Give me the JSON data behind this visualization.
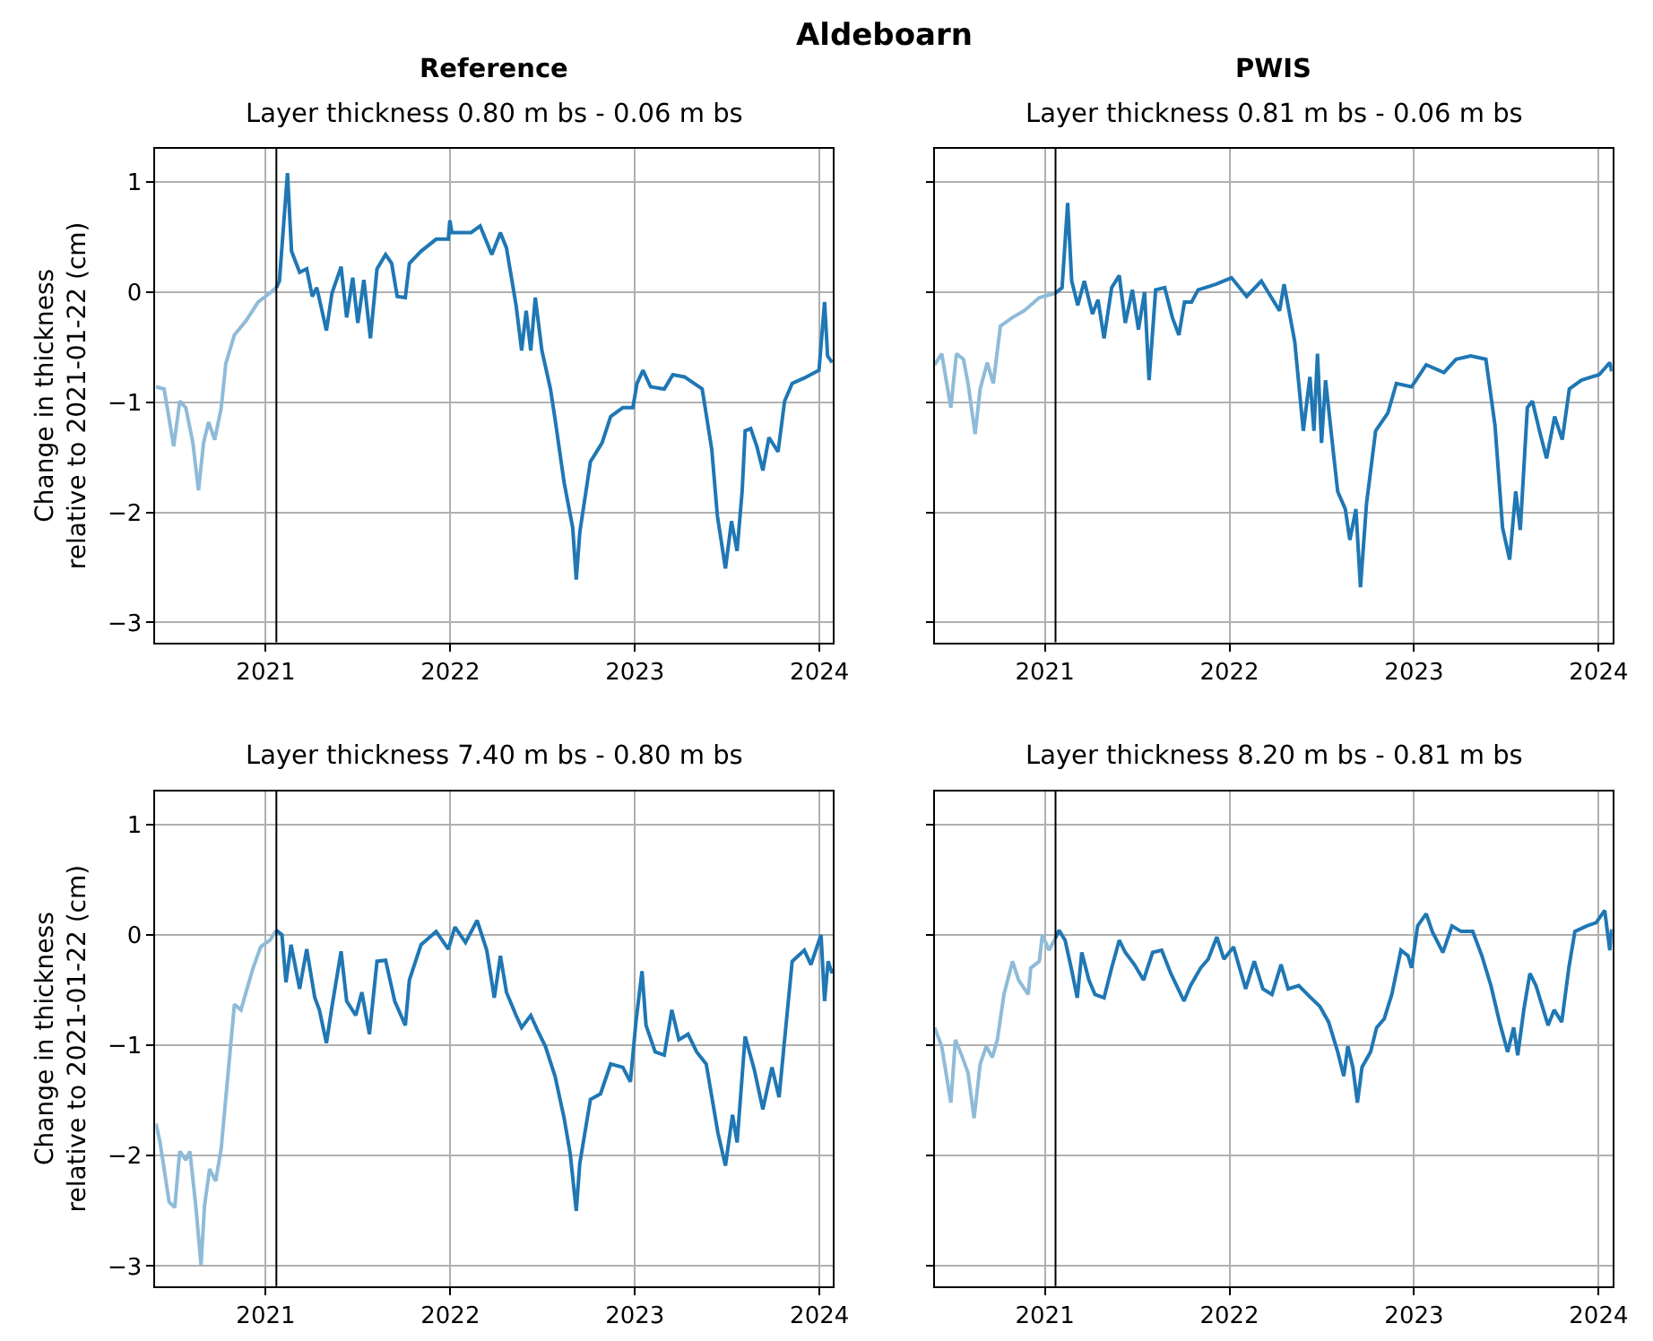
{
  "chart_data": [
    {
      "type": "line",
      "title": "Reference",
      "subtitle": "Layer thickness 0.80 m bs - 0.06 m bs",
      "ylabel": "Change in thickness\nrelative to 2021-01-22 (cm)",
      "annotations": [
        "Aldeboarn"
      ],
      "xlim": [
        "2020-05-28",
        "2024-01-28"
      ],
      "xticks": [
        {
          "value": "2021-01-01",
          "label": "2021"
        },
        {
          "value": "2022-01-01",
          "label": "2022"
        },
        {
          "value": "2023-01-01",
          "label": "2023"
        },
        {
          "value": "2024-01-01",
          "label": "2024"
        }
      ],
      "ylim": [
        -3.18,
        1.3
      ],
      "yticks": [
        -3,
        -2,
        -1,
        0,
        1
      ],
      "grid": true,
      "marker": "none",
      "line_style": "solid",
      "ref_lines": [
        {
          "axis": "x",
          "value": "2021-01-22",
          "color": "#000000"
        }
      ],
      "series": [
        {
          "color": "#8fbbd9",
          "x": [
            "2020-05-29",
            "2020-06-14",
            "2020-07-03",
            "2020-07-15",
            "2020-07-27",
            "2020-08-10",
            "2020-08-21",
            "2020-08-31",
            "2020-09-10",
            "2020-09-22",
            "2020-10-05",
            "2020-10-14",
            "2020-10-31",
            "2020-11-23",
            "2020-12-17",
            "2021-01-09",
            "2021-01-22"
          ],
          "values": [
            -0.86,
            -0.88,
            -1.4,
            -0.99,
            -1.05,
            -1.37,
            -1.8,
            -1.37,
            -1.18,
            -1.34,
            -1.05,
            -0.65,
            -0.39,
            -0.26,
            -0.09,
            -0.01,
            0.04
          ]
        },
        {
          "color": "#1f77b4",
          "x": [
            "2021-01-22",
            "2021-01-28",
            "2021-02-13",
            "2021-02-21",
            "2021-03-09",
            "2021-03-23",
            "2021-04-03",
            "2021-04-12",
            "2021-05-01",
            "2021-05-12",
            "2021-05-30",
            "2021-06-10",
            "2021-06-22",
            "2021-07-02",
            "2021-07-14",
            "2021-07-27",
            "2021-08-09",
            "2021-08-26",
            "2021-09-07",
            "2021-09-18",
            "2021-10-04",
            "2021-10-12",
            "2021-11-04",
            "2021-12-04",
            "2021-12-28",
            "2021-12-31",
            "2022-01-04",
            "2022-02-11",
            "2022-03-01",
            "2022-03-24",
            "2022-04-10",
            "2022-04-22",
            "2022-05-11",
            "2022-05-22",
            "2022-05-31",
            "2022-06-09",
            "2022-06-18",
            "2022-07-01",
            "2022-07-18",
            "2022-07-27",
            "2022-08-14",
            "2022-08-31",
            "2022-09-07",
            "2022-09-14",
            "2022-10-05",
            "2022-10-28",
            "2022-11-14",
            "2022-12-08",
            "2022-12-28",
            "2023-01-05",
            "2023-01-17",
            "2023-02-01",
            "2023-02-28",
            "2023-03-17",
            "2023-04-09",
            "2023-05-14",
            "2023-06-02",
            "2023-06-13",
            "2023-06-29",
            "2023-07-11",
            "2023-07-22",
            "2023-08-01",
            "2023-08-07",
            "2023-08-18",
            "2023-08-30",
            "2023-09-11",
            "2023-09-23",
            "2023-10-11",
            "2023-10-24",
            "2023-11-08",
            "2023-12-02",
            "2023-12-31",
            "2024-01-11",
            "2024-01-17",
            "2024-01-26"
          ],
          "values": [
            0.04,
            0.1,
            1.08,
            0.37,
            0.18,
            0.21,
            -0.04,
            0.04,
            -0.35,
            -0.01,
            0.23,
            -0.23,
            0.13,
            -0.28,
            0.11,
            -0.42,
            0.21,
            0.34,
            0.26,
            -0.04,
            -0.05,
            0.26,
            0.37,
            0.48,
            0.48,
            0.65,
            0.54,
            0.54,
            0.6,
            0.34,
            0.54,
            0.4,
            -0.12,
            -0.53,
            -0.17,
            -0.53,
            -0.05,
            -0.53,
            -0.88,
            -1.15,
            -1.73,
            -2.14,
            -2.61,
            -2.18,
            -1.54,
            -1.37,
            -1.13,
            -1.05,
            -1.05,
            -0.83,
            -0.71,
            -0.86,
            -0.88,
            -0.75,
            -0.77,
            -0.88,
            -1.43,
            -2.03,
            -2.51,
            -2.08,
            -2.35,
            -1.81,
            -1.26,
            -1.24,
            -1.4,
            -1.62,
            -1.32,
            -1.45,
            -0.99,
            -0.83,
            -0.78,
            -0.71,
            -0.09,
            -0.58,
            -0.64
          ]
        }
      ]
    },
    {
      "type": "line",
      "title": "PWIS",
      "subtitle": "Layer thickness 0.81 m bs - 0.06 m bs",
      "xlim": [
        "2020-05-28",
        "2024-01-28"
      ],
      "xticks": [
        {
          "value": "2021-01-01",
          "label": "2021"
        },
        {
          "value": "2022-01-01",
          "label": "2022"
        },
        {
          "value": "2023-01-01",
          "label": "2023"
        },
        {
          "value": "2024-01-01",
          "label": "2024"
        }
      ],
      "ylim": [
        -3.18,
        1.3
      ],
      "yticks": [
        -3,
        -2,
        -1,
        0,
        1
      ],
      "tick_labels": "x",
      "grid": true,
      "marker": "none",
      "line_style": "solid",
      "ref_lines": [
        {
          "axis": "x",
          "value": "2021-01-22",
          "color": "#000000"
        }
      ],
      "series": [
        {
          "color": "#8fbbd9",
          "x": [
            "2020-05-28",
            "2020-06-11",
            "2020-06-29",
            "2020-07-10",
            "2020-07-24",
            "2020-08-02",
            "2020-08-16",
            "2020-08-26",
            "2020-09-09",
            "2020-09-21",
            "2020-10-05",
            "2020-10-29",
            "2020-11-21",
            "2020-12-21",
            "2021-01-22"
          ],
          "values": [
            -0.66,
            -0.56,
            -1.05,
            -0.56,
            -0.61,
            -0.83,
            -1.29,
            -0.88,
            -0.64,
            -0.83,
            -0.31,
            -0.23,
            -0.17,
            -0.05,
            -0.01
          ]
        },
        {
          "color": "#1f77b4",
          "x": [
            "2021-01-22",
            "2021-02-04",
            "2021-02-15",
            "2021-02-23",
            "2021-03-07",
            "2021-03-20",
            "2021-04-05",
            "2021-04-16",
            "2021-04-28",
            "2021-05-13",
            "2021-05-28",
            "2021-06-09",
            "2021-06-23",
            "2021-07-05",
            "2021-07-17",
            "2021-07-26",
            "2021-08-08",
            "2021-08-26",
            "2021-09-10",
            "2021-09-23",
            "2021-10-04",
            "2021-10-18",
            "2021-10-31",
            "2021-12-05",
            "2022-01-05",
            "2022-02-04",
            "2022-03-05",
            "2022-04-10",
            "2022-04-19",
            "2022-05-10",
            "2022-05-27",
            "2022-06-09",
            "2022-06-17",
            "2022-06-24",
            "2022-07-02",
            "2022-07-10",
            "2022-07-26",
            "2022-08-03",
            "2022-08-18",
            "2022-08-27",
            "2022-09-08",
            "2022-09-17",
            "2022-09-29",
            "2022-10-17",
            "2022-11-10",
            "2022-11-27",
            "2022-12-27",
            "2023-01-25",
            "2023-03-01",
            "2023-03-25",
            "2023-04-23",
            "2023-05-23",
            "2023-06-10",
            "2023-06-25",
            "2023-07-09",
            "2023-07-21",
            "2023-07-30",
            "2023-08-13",
            "2023-08-23",
            "2023-09-06",
            "2023-09-20",
            "2023-10-06",
            "2023-10-21",
            "2023-11-04",
            "2023-11-28",
            "2024-01-02",
            "2024-01-23",
            "2024-01-27"
          ],
          "values": [
            -0.01,
            0.04,
            0.81,
            0.1,
            -0.12,
            0.1,
            -0.2,
            -0.07,
            -0.42,
            0.04,
            0.15,
            -0.28,
            0.02,
            -0.34,
            0.0,
            -0.8,
            0.02,
            0.04,
            -0.23,
            -0.39,
            -0.09,
            -0.09,
            0.02,
            0.07,
            0.13,
            -0.04,
            0.1,
            -0.17,
            0.07,
            -0.45,
            -1.26,
            -0.77,
            -1.26,
            -0.56,
            -1.37,
            -0.8,
            -1.48,
            -1.81,
            -1.97,
            -2.25,
            -1.97,
            -2.68,
            -1.92,
            -1.26,
            -1.1,
            -0.83,
            -0.86,
            -0.66,
            -0.73,
            -0.61,
            -0.58,
            -0.61,
            -1.21,
            -2.14,
            -2.43,
            -1.81,
            -2.16,
            -1.05,
            -0.99,
            -1.26,
            -1.51,
            -1.13,
            -1.34,
            -0.88,
            -0.8,
            -0.75,
            -0.64,
            -0.72
          ]
        }
      ]
    },
    {
      "type": "line",
      "subtitle": "Layer thickness 7.40 m bs - 0.80 m bs",
      "ylabel": "Change in thickness\nrelative to 2021-01-22 (cm)",
      "xlim": [
        "2020-05-28",
        "2024-01-28"
      ],
      "xticks": [
        {
          "value": "2021-01-01",
          "label": "2021"
        },
        {
          "value": "2022-01-01",
          "label": "2022"
        },
        {
          "value": "2023-01-01",
          "label": "2023"
        },
        {
          "value": "2024-01-01",
          "label": "2024"
        }
      ],
      "ylim": [
        -3.18,
        1.3
      ],
      "yticks": [
        -3,
        -2,
        -1,
        0,
        1
      ],
      "grid": true,
      "marker": "none",
      "line_style": "solid",
      "ref_lines": [
        {
          "axis": "x",
          "value": "2021-01-22",
          "color": "#000000"
        }
      ],
      "series": [
        {
          "color": "#8fbbd9",
          "x": [
            "2020-05-29",
            "2020-06-06",
            "2020-06-24",
            "2020-07-05",
            "2020-07-15",
            "2020-07-27",
            "2020-08-04",
            "2020-08-16",
            "2020-08-26",
            "2020-09-02",
            "2020-09-12",
            "2020-09-24",
            "2020-10-05",
            "2020-10-18",
            "2020-10-31",
            "2020-11-13",
            "2020-11-23",
            "2020-12-07",
            "2020-12-22",
            "2021-01-09",
            "2021-01-22"
          ],
          "values": [
            -1.71,
            -1.88,
            -2.42,
            -2.47,
            -1.96,
            -2.04,
            -1.96,
            -2.47,
            -2.99,
            -2.45,
            -2.12,
            -2.23,
            -1.93,
            -1.28,
            -0.63,
            -0.68,
            -0.52,
            -0.3,
            -0.11,
            -0.05,
            0.04
          ]
        },
        {
          "color": "#1f77b4",
          "x": [
            "2021-01-22",
            "2021-02-02",
            "2021-02-10",
            "2021-02-20",
            "2021-03-09",
            "2021-03-23",
            "2021-04-08",
            "2021-04-17",
            "2021-05-01",
            "2021-05-12",
            "2021-05-30",
            "2021-06-10",
            "2021-06-28",
            "2021-07-10",
            "2021-07-25",
            "2021-08-09",
            "2021-08-26",
            "2021-09-13",
            "2021-10-04",
            "2021-10-12",
            "2021-11-04",
            "2021-12-04",
            "2021-12-28",
            "2022-01-10",
            "2022-01-31",
            "2022-02-23",
            "2022-03-14",
            "2022-03-29",
            "2022-04-10",
            "2022-04-22",
            "2022-05-11",
            "2022-05-22",
            "2022-06-09",
            "2022-06-23",
            "2022-07-08",
            "2022-07-27",
            "2022-08-14",
            "2022-08-26",
            "2022-09-07",
            "2022-09-14",
            "2022-10-05",
            "2022-10-25",
            "2022-11-14",
            "2022-12-08",
            "2022-12-23",
            "2023-01-03",
            "2023-01-15",
            "2023-01-23",
            "2023-02-10",
            "2023-02-28",
            "2023-03-15",
            "2023-03-29",
            "2023-04-16",
            "2023-05-03",
            "2023-05-22",
            "2023-06-14",
            "2023-06-29",
            "2023-07-13",
            "2023-07-22",
            "2023-08-07",
            "2023-08-25",
            "2023-09-11",
            "2023-09-29",
            "2023-10-13",
            "2023-10-24",
            "2023-11-08",
            "2023-12-02",
            "2023-12-15",
            "2024-01-04",
            "2024-01-11",
            "2024-01-18",
            "2024-01-26"
          ],
          "values": [
            0.04,
            0.0,
            -0.43,
            -0.09,
            -0.49,
            -0.13,
            -0.57,
            -0.68,
            -0.98,
            -0.65,
            -0.15,
            -0.6,
            -0.73,
            -0.52,
            -0.9,
            -0.24,
            -0.23,
            -0.6,
            -0.82,
            -0.41,
            -0.09,
            0.03,
            -0.13,
            0.07,
            -0.07,
            0.13,
            -0.14,
            -0.57,
            -0.19,
            -0.52,
            -0.73,
            -0.84,
            -0.73,
            -0.87,
            -1.01,
            -1.28,
            -1.66,
            -1.98,
            -2.5,
            -2.07,
            -1.49,
            -1.44,
            -1.17,
            -1.2,
            -1.33,
            -0.79,
            -0.33,
            -0.82,
            -1.06,
            -1.09,
            -0.68,
            -0.95,
            -0.9,
            -1.06,
            -1.17,
            -1.79,
            -2.09,
            -1.63,
            -1.88,
            -0.92,
            -1.22,
            -1.58,
            -1.2,
            -1.47,
            -0.95,
            -0.24,
            -0.14,
            -0.27,
            0.0,
            -0.6,
            -0.24,
            -0.35
          ]
        }
      ]
    },
    {
      "type": "line",
      "subtitle": "Layer thickness 8.20 m bs - 0.81 m bs",
      "xlim": [
        "2020-05-28",
        "2024-01-28"
      ],
      "xticks": [
        {
          "value": "2021-01-01",
          "label": "2021"
        },
        {
          "value": "2022-01-01",
          "label": "2022"
        },
        {
          "value": "2023-01-01",
          "label": "2023"
        },
        {
          "value": "2024-01-01",
          "label": "2024"
        }
      ],
      "ylim": [
        -3.18,
        1.3
      ],
      "yticks": [
        -3,
        -2,
        -1,
        0,
        1
      ],
      "tick_labels": "x",
      "grid": true,
      "marker": "none",
      "line_style": "solid",
      "ref_lines": [
        {
          "axis": "x",
          "value": "2021-01-22",
          "color": "#000000"
        }
      ],
      "series": [
        {
          "color": "#8fbbd9",
          "x": [
            "2020-05-28",
            "2020-06-11",
            "2020-06-29",
            "2020-07-08",
            "2020-07-22",
            "2020-08-02",
            "2020-08-14",
            "2020-08-26",
            "2020-09-07",
            "2020-09-19",
            "2020-09-29",
            "2020-10-12",
            "2020-10-29",
            "2020-11-10",
            "2020-11-29",
            "2020-12-04",
            "2020-12-21",
            "2020-12-27",
            "2021-01-09",
            "2021-01-22"
          ],
          "values": [
            -0.84,
            -1.01,
            -1.52,
            -0.95,
            -1.11,
            -1.25,
            -1.66,
            -1.17,
            -1.01,
            -1.11,
            -0.95,
            -0.54,
            -0.24,
            -0.41,
            -0.54,
            -0.3,
            -0.24,
            0.0,
            -0.14,
            -0.03
          ]
        },
        {
          "color": "#1f77b4",
          "x": [
            "2021-01-22",
            "2021-01-29",
            "2021-02-10",
            "2021-02-22",
            "2021-03-06",
            "2021-03-15",
            "2021-03-29",
            "2021-04-10",
            "2021-04-28",
            "2021-05-13",
            "2021-05-28",
            "2021-06-09",
            "2021-06-27",
            "2021-07-15",
            "2021-08-02",
            "2021-08-20",
            "2021-09-07",
            "2021-10-03",
            "2021-10-16",
            "2021-11-05",
            "2021-11-20",
            "2021-12-07",
            "2021-12-21",
            "2022-01-09",
            "2022-02-02",
            "2022-02-19",
            "2022-03-08",
            "2022-03-26",
            "2022-04-13",
            "2022-04-27",
            "2022-05-18",
            "2022-06-11",
            "2022-06-29",
            "2022-07-16",
            "2022-08-03",
            "2022-08-15",
            "2022-08-23",
            "2022-09-02",
            "2022-09-11",
            "2022-09-20",
            "2022-10-07",
            "2022-10-19",
            "2022-11-03",
            "2022-11-18",
            "2022-12-06",
            "2022-12-20",
            "2022-12-27",
            "2023-01-08",
            "2023-01-25",
            "2023-02-06",
            "2023-02-27",
            "2023-03-17",
            "2023-04-04",
            "2023-04-27",
            "2023-05-15",
            "2023-06-02",
            "2023-06-19",
            "2023-07-05",
            "2023-07-17",
            "2023-07-25",
            "2023-08-06",
            "2023-08-18",
            "2023-08-30",
            "2023-09-23",
            "2023-10-05",
            "2023-10-20",
            "2023-11-03",
            "2023-11-15",
            "2023-12-09",
            "2023-12-27",
            "2024-01-13",
            "2024-01-23",
            "2024-01-27"
          ],
          "values": [
            -0.03,
            0.04,
            -0.05,
            -0.3,
            -0.57,
            -0.16,
            -0.41,
            -0.54,
            -0.57,
            -0.3,
            -0.05,
            -0.16,
            -0.27,
            -0.41,
            -0.16,
            -0.14,
            -0.35,
            -0.6,
            -0.46,
            -0.3,
            -0.22,
            -0.02,
            -0.22,
            -0.11,
            -0.49,
            -0.24,
            -0.49,
            -0.54,
            -0.27,
            -0.49,
            -0.46,
            -0.57,
            -0.65,
            -0.79,
            -1.06,
            -1.28,
            -1.01,
            -1.2,
            -1.52,
            -1.2,
            -1.06,
            -0.84,
            -0.76,
            -0.54,
            -0.14,
            -0.19,
            -0.3,
            0.08,
            0.19,
            0.03,
            -0.16,
            0.08,
            0.03,
            0.03,
            -0.19,
            -0.46,
            -0.79,
            -1.06,
            -0.84,
            -1.09,
            -0.68,
            -0.35,
            -0.46,
            -0.82,
            -0.68,
            -0.79,
            -0.3,
            0.03,
            0.08,
            0.11,
            0.22,
            -0.14,
            0.05
          ]
        }
      ]
    }
  ]
}
